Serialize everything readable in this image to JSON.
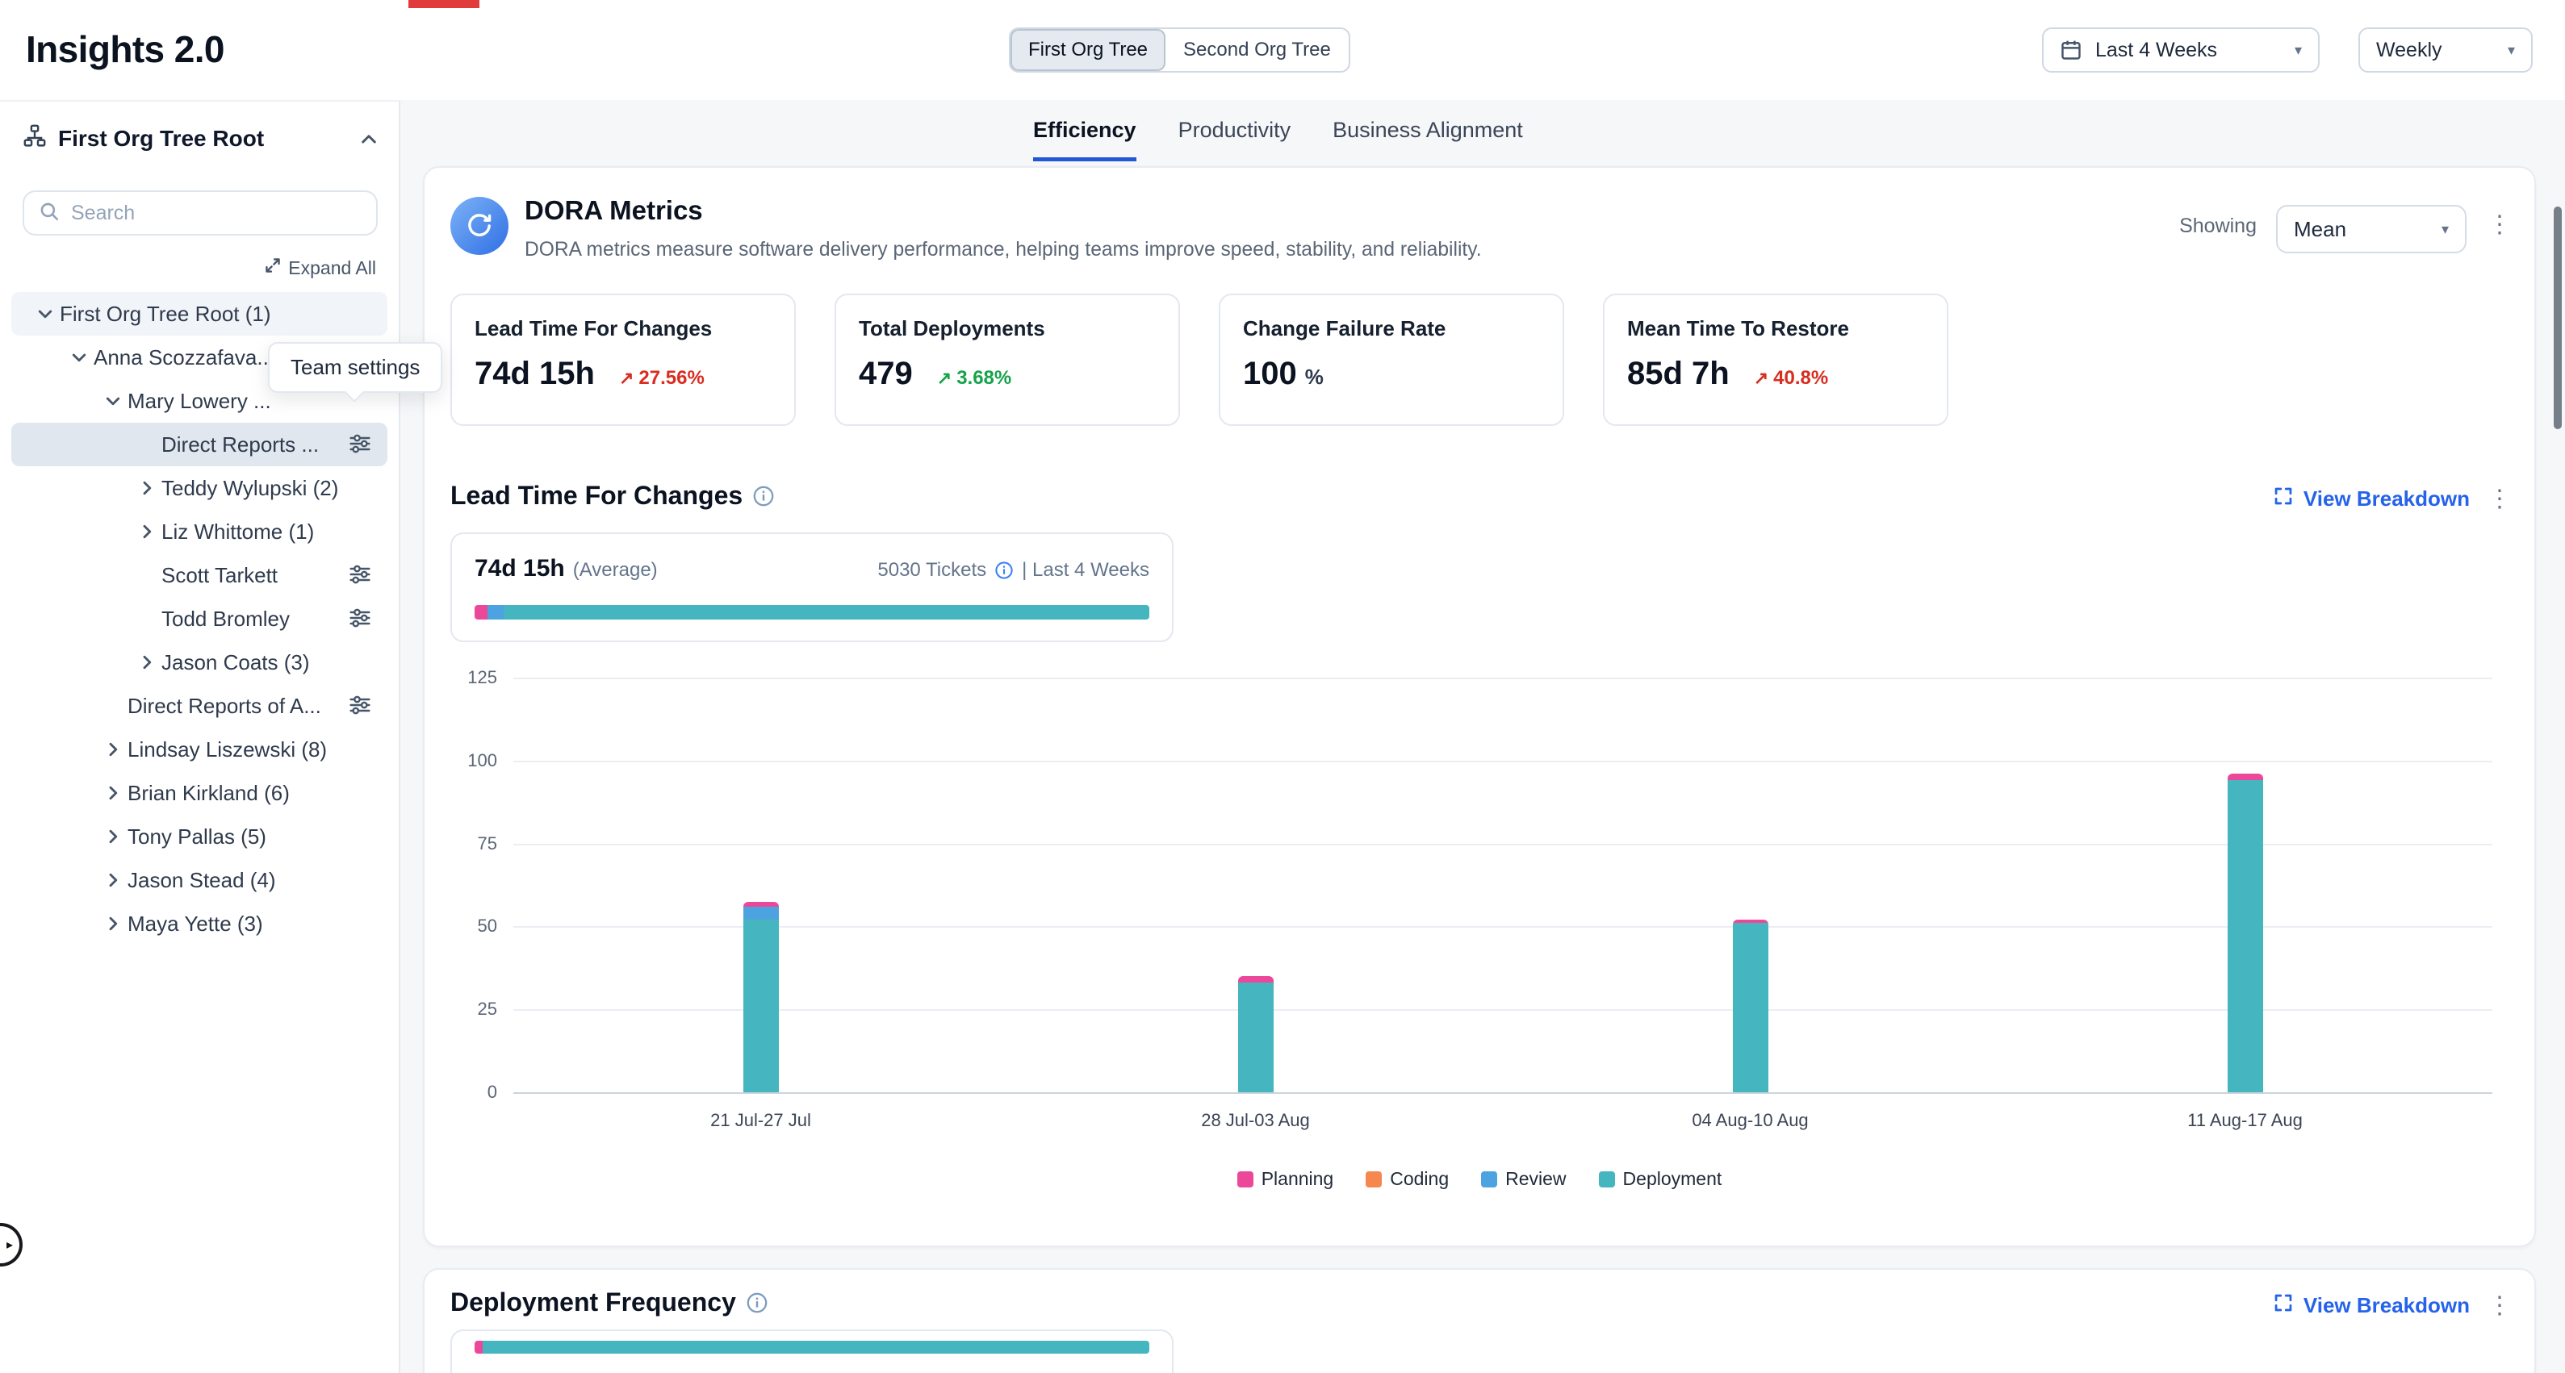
{
  "icons": {
    "kebab": "⋮",
    "trend_up": "↗",
    "chevron_down": "▾",
    "sidebar_handle": "▸"
  },
  "header": {
    "title": "Insights 2.0",
    "org_toggle": [
      "First Org Tree",
      "Second Org Tree"
    ],
    "active_toggle": "First Org Tree",
    "period_value": "Last 4 Weeks",
    "granularity_value": "Weekly"
  },
  "sidebar": {
    "root_label": "First Org Tree Root",
    "search_placeholder": "Search",
    "expand_all": "Expand All",
    "tooltip": "Team settings",
    "tree": [
      {
        "label": "First Org Tree Root (1)",
        "level": 0,
        "chevron": "down",
        "subtle": true
      },
      {
        "label": "Anna Scozzafava...",
        "level": 1,
        "chevron": "down"
      },
      {
        "label": "Mary Lowery ...",
        "level": 2,
        "chevron": "down"
      },
      {
        "label": "Direct Reports ...",
        "level": 3,
        "selected": true,
        "settings": true
      },
      {
        "label": "Teddy Wylupski (2)",
        "level": 3,
        "chevron": "right"
      },
      {
        "label": "Liz Whittome (1)",
        "level": 3,
        "chevron": "right"
      },
      {
        "label": "Scott Tarkett",
        "level": 3,
        "settings": true
      },
      {
        "label": "Todd Bromley",
        "level": 3,
        "settings": true
      },
      {
        "label": "Jason Coats (3)",
        "level": 3,
        "chevron": "right"
      },
      {
        "label": "Direct Reports of A...",
        "level": 2,
        "settings": true
      },
      {
        "label": "Lindsay Liszewski (8)",
        "level": 2,
        "chevron": "right"
      },
      {
        "label": "Brian Kirkland (6)",
        "level": 2,
        "chevron": "right"
      },
      {
        "label": "Tony Pallas (5)",
        "level": 2,
        "chevron": "right"
      },
      {
        "label": "Jason Stead (4)",
        "level": 2,
        "chevron": "right"
      },
      {
        "label": "Maya Yette (3)",
        "level": 2,
        "chevron": "right"
      }
    ]
  },
  "tabs": {
    "items": [
      "Efficiency",
      "Productivity",
      "Business Alignment"
    ],
    "active": "Efficiency"
  },
  "dora": {
    "title": "DORA Metrics",
    "subtitle": "DORA metrics measure software delivery performance, helping teams improve speed, stability, and reliability.",
    "showing_label": "Showing",
    "showing_value": "Mean",
    "cards": [
      {
        "title": "Lead Time For Changes",
        "value": "74d 15h",
        "delta": "27.56%",
        "delta_color": "#d92d20"
      },
      {
        "title": "Total Deployments",
        "value": "479",
        "delta": "3.68%",
        "delta_color": "#16a34a"
      },
      {
        "title": "Change Failure Rate",
        "value": "100",
        "unit": "%"
      },
      {
        "title": "Mean Time To Restore",
        "value": "85d 7h",
        "delta": "40.8%",
        "delta_color": "#d92d20"
      }
    ]
  },
  "lead_time_section": {
    "title": "Lead Time For Changes",
    "view_breakdown": "View Breakdown",
    "summary": {
      "value": "74d 15h",
      "label": "(Average)",
      "tickets": "5030 Tickets",
      "period": "| Last 4 Weeks",
      "bar_segments": [
        {
          "name": "Planning",
          "color": "#ec4899",
          "pct": 1.9
        },
        {
          "name": "Review",
          "color": "#4da3e0",
          "pct": 2.4
        },
        {
          "name": "Deployment",
          "color": "#45b5c0",
          "pct": 95.7
        }
      ]
    },
    "chart_data": {
      "type": "bar",
      "stacked": true,
      "title": "Lead Time For Changes",
      "categories": [
        "21 Jul-27 Jul",
        "28 Jul-03 Aug",
        "04 Aug-10 Aug",
        "11 Aug-17 Aug"
      ],
      "series": [
        {
          "name": "Planning",
          "color": "#ec4899",
          "values": [
            1.5,
            2,
            1,
            2
          ]
        },
        {
          "name": "Coding",
          "color": "#f5874f",
          "values": [
            0,
            0,
            0,
            0
          ]
        },
        {
          "name": "Review",
          "color": "#4da3e0",
          "values": [
            4,
            0,
            0,
            0
          ]
        },
        {
          "name": "Deployment",
          "color": "#45b5c0",
          "values": [
            52,
            33,
            51,
            94
          ]
        }
      ],
      "ylim": [
        0,
        125
      ],
      "yticks": [
        0,
        25,
        50,
        75,
        100,
        125
      ],
      "grid": true,
      "legend_position": "bottom"
    }
  },
  "deployment_section": {
    "title": "Deployment Frequency",
    "view_breakdown": "View Breakdown",
    "bar_segments": [
      {
        "name": "Planning",
        "color": "#ec4899",
        "pct": 1.2
      },
      {
        "name": "Deployment",
        "color": "#45b5c0",
        "pct": 98.8
      }
    ]
  }
}
